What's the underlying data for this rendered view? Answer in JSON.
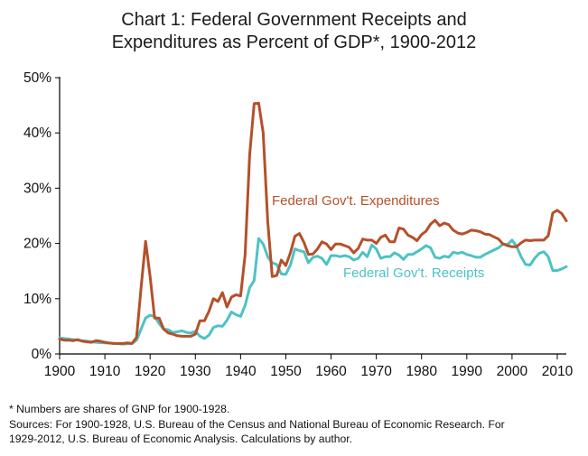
{
  "chart_data": {
    "type": "line",
    "title_line1": "Chart 1: Federal Government Receipts and",
    "title_line2": "Expenditures as Percent of GDP*, 1900-2012",
    "xlabel": "",
    "ylabel": "",
    "xlim": [
      1900,
      2012
    ],
    "ylim": [
      0,
      50
    ],
    "x_ticks": [
      1900,
      1910,
      1920,
      1930,
      1940,
      1950,
      1960,
      1970,
      1980,
      1990,
      2000,
      2010
    ],
    "y_ticks": [
      0,
      10,
      20,
      30,
      40,
      50
    ],
    "y_tick_labels": [
      "0%",
      "10%",
      "20%",
      "30%",
      "40%",
      "50%"
    ],
    "grid": false,
    "series": [
      {
        "name": "Federal Gov't. Receipts",
        "color": "#4dc2c4",
        "points": [
          [
            1900,
            2.9
          ],
          [
            1902,
            2.7
          ],
          [
            1904,
            2.5
          ],
          [
            1906,
            2.3
          ],
          [
            1908,
            2.1
          ],
          [
            1910,
            2.0
          ],
          [
            1912,
            1.9
          ],
          [
            1914,
            1.8
          ],
          [
            1916,
            1.9
          ],
          [
            1917,
            2.5
          ],
          [
            1918,
            4.5
          ],
          [
            1919,
            6.5
          ],
          [
            1920,
            7.0
          ],
          [
            1921,
            6.8
          ],
          [
            1922,
            5.5
          ],
          [
            1923,
            4.5
          ],
          [
            1924,
            4.4
          ],
          [
            1925,
            3.9
          ],
          [
            1926,
            4.0
          ],
          [
            1927,
            4.2
          ],
          [
            1928,
            3.9
          ],
          [
            1929,
            3.8
          ],
          [
            1930,
            4.1
          ],
          [
            1931,
            3.2
          ],
          [
            1932,
            2.8
          ],
          [
            1933,
            3.4
          ],
          [
            1934,
            4.8
          ],
          [
            1935,
            5.1
          ],
          [
            1936,
            5.0
          ],
          [
            1937,
            6.1
          ],
          [
            1938,
            7.6
          ],
          [
            1939,
            7.1
          ],
          [
            1940,
            6.8
          ],
          [
            1941,
            8.8
          ],
          [
            1942,
            12.0
          ],
          [
            1943,
            13.3
          ],
          [
            1944,
            20.9
          ],
          [
            1945,
            19.9
          ],
          [
            1946,
            17.6
          ],
          [
            1947,
            16.5
          ],
          [
            1948,
            16.2
          ],
          [
            1949,
            14.5
          ],
          [
            1950,
            14.4
          ],
          [
            1951,
            16.1
          ],
          [
            1952,
            19.0
          ],
          [
            1953,
            18.7
          ],
          [
            1954,
            18.5
          ],
          [
            1955,
            16.5
          ],
          [
            1956,
            17.5
          ],
          [
            1957,
            17.7
          ],
          [
            1958,
            17.3
          ],
          [
            1959,
            16.2
          ],
          [
            1960,
            17.8
          ],
          [
            1961,
            17.8
          ],
          [
            1962,
            17.6
          ],
          [
            1963,
            17.8
          ],
          [
            1964,
            17.6
          ],
          [
            1965,
            17.0
          ],
          [
            1966,
            17.3
          ],
          [
            1967,
            18.4
          ],
          [
            1968,
            17.6
          ],
          [
            1969,
            19.7
          ],
          [
            1970,
            19.0
          ],
          [
            1971,
            17.3
          ],
          [
            1972,
            17.6
          ],
          [
            1973,
            17.6
          ],
          [
            1974,
            18.3
          ],
          [
            1975,
            17.9
          ],
          [
            1976,
            17.1
          ],
          [
            1977,
            18.0
          ],
          [
            1978,
            18.0
          ],
          [
            1979,
            18.5
          ],
          [
            1980,
            19.0
          ],
          [
            1981,
            19.6
          ],
          [
            1982,
            19.2
          ],
          [
            1983,
            17.5
          ],
          [
            1984,
            17.3
          ],
          [
            1985,
            17.7
          ],
          [
            1986,
            17.5
          ],
          [
            1987,
            18.4
          ],
          [
            1988,
            18.2
          ],
          [
            1989,
            18.4
          ],
          [
            1990,
            18.0
          ],
          [
            1991,
            17.8
          ],
          [
            1992,
            17.5
          ],
          [
            1993,
            17.5
          ],
          [
            1994,
            18.0
          ],
          [
            1995,
            18.4
          ],
          [
            1996,
            18.8
          ],
          [
            1997,
            19.2
          ],
          [
            1998,
            19.9
          ],
          [
            1999,
            19.8
          ],
          [
            2000,
            20.6
          ],
          [
            2001,
            19.5
          ],
          [
            2002,
            17.6
          ],
          [
            2003,
            16.2
          ],
          [
            2004,
            16.1
          ],
          [
            2005,
            17.3
          ],
          [
            2006,
            18.2
          ],
          [
            2007,
            18.5
          ],
          [
            2008,
            17.6
          ],
          [
            2009,
            15.1
          ],
          [
            2010,
            15.1
          ],
          [
            2011,
            15.4
          ],
          [
            2012,
            15.8
          ]
        ]
      },
      {
        "name": "Federal Gov't. Expenditures",
        "color": "#b5502a",
        "points": [
          [
            1900,
            2.7
          ],
          [
            1901,
            2.5
          ],
          [
            1902,
            2.5
          ],
          [
            1903,
            2.4
          ],
          [
            1904,
            2.6
          ],
          [
            1905,
            2.3
          ],
          [
            1906,
            2.2
          ],
          [
            1907,
            2.1
          ],
          [
            1908,
            2.4
          ],
          [
            1909,
            2.3
          ],
          [
            1910,
            2.1
          ],
          [
            1911,
            2.0
          ],
          [
            1912,
            1.9
          ],
          [
            1913,
            1.9
          ],
          [
            1914,
            1.9
          ],
          [
            1915,
            2.0
          ],
          [
            1916,
            1.9
          ],
          [
            1917,
            3.0
          ],
          [
            1918,
            12.0
          ],
          [
            1919,
            20.4
          ],
          [
            1920,
            14.0
          ],
          [
            1921,
            6.5
          ],
          [
            1922,
            6.5
          ],
          [
            1923,
            4.5
          ],
          [
            1924,
            3.8
          ],
          [
            1925,
            3.6
          ],
          [
            1926,
            3.3
          ],
          [
            1927,
            3.2
          ],
          [
            1928,
            3.2
          ],
          [
            1929,
            3.2
          ],
          [
            1930,
            3.6
          ],
          [
            1931,
            6.0
          ],
          [
            1932,
            6.0
          ],
          [
            1933,
            7.7
          ],
          [
            1934,
            10.0
          ],
          [
            1935,
            9.5
          ],
          [
            1936,
            11.1
          ],
          [
            1937,
            8.5
          ],
          [
            1938,
            10.3
          ],
          [
            1939,
            10.7
          ],
          [
            1940,
            10.5
          ],
          [
            1941,
            18.0
          ],
          [
            1942,
            36.0
          ],
          [
            1943,
            45.3
          ],
          [
            1944,
            45.4
          ],
          [
            1945,
            40.0
          ],
          [
            1946,
            24.0
          ],
          [
            1947,
            14.0
          ],
          [
            1948,
            14.2
          ],
          [
            1949,
            17.0
          ],
          [
            1950,
            16.0
          ],
          [
            1951,
            18.3
          ],
          [
            1952,
            21.3
          ],
          [
            1953,
            21.8
          ],
          [
            1954,
            20.2
          ],
          [
            1955,
            18.0
          ],
          [
            1956,
            18.1
          ],
          [
            1957,
            19.0
          ],
          [
            1958,
            20.3
          ],
          [
            1959,
            19.9
          ],
          [
            1960,
            18.9
          ],
          [
            1961,
            19.9
          ],
          [
            1962,
            19.9
          ],
          [
            1963,
            19.6
          ],
          [
            1964,
            19.3
          ],
          [
            1965,
            18.3
          ],
          [
            1966,
            19.1
          ],
          [
            1967,
            20.8
          ],
          [
            1968,
            20.6
          ],
          [
            1969,
            20.6
          ],
          [
            1970,
            20.0
          ],
          [
            1971,
            21.1
          ],
          [
            1972,
            21.5
          ],
          [
            1973,
            20.3
          ],
          [
            1974,
            20.3
          ],
          [
            1975,
            22.8
          ],
          [
            1976,
            22.6
          ],
          [
            1977,
            21.5
          ],
          [
            1978,
            21.1
          ],
          [
            1979,
            20.5
          ],
          [
            1980,
            21.6
          ],
          [
            1981,
            22.2
          ],
          [
            1982,
            23.5
          ],
          [
            1983,
            24.2
          ],
          [
            1984,
            23.2
          ],
          [
            1985,
            23.7
          ],
          [
            1986,
            23.4
          ],
          [
            1987,
            22.4
          ],
          [
            1988,
            21.9
          ],
          [
            1989,
            21.7
          ],
          [
            1990,
            22.0
          ],
          [
            1991,
            22.4
          ],
          [
            1992,
            22.3
          ],
          [
            1993,
            22.1
          ],
          [
            1994,
            21.7
          ],
          [
            1995,
            21.6
          ],
          [
            1996,
            21.2
          ],
          [
            1997,
            20.8
          ],
          [
            1998,
            19.9
          ],
          [
            1999,
            19.6
          ],
          [
            2000,
            19.4
          ],
          [
            2001,
            19.4
          ],
          [
            2002,
            20.1
          ],
          [
            2003,
            20.6
          ],
          [
            2004,
            20.5
          ],
          [
            2005,
            20.6
          ],
          [
            2006,
            20.6
          ],
          [
            2007,
            20.6
          ],
          [
            2008,
            21.4
          ],
          [
            2009,
            25.5
          ],
          [
            2010,
            26.0
          ],
          [
            2011,
            25.4
          ],
          [
            2012,
            24.1
          ]
        ]
      }
    ],
    "notes": [
      "* Numbers are shares of GNP for 1900-1928.",
      "Sources: For 1900-1928, U.S. Bureau of the Census and National Bureau of Economic Research.  For",
      "1929-2012,  U.S. Bureau of Economic Analysis.  Calculations by author."
    ]
  }
}
